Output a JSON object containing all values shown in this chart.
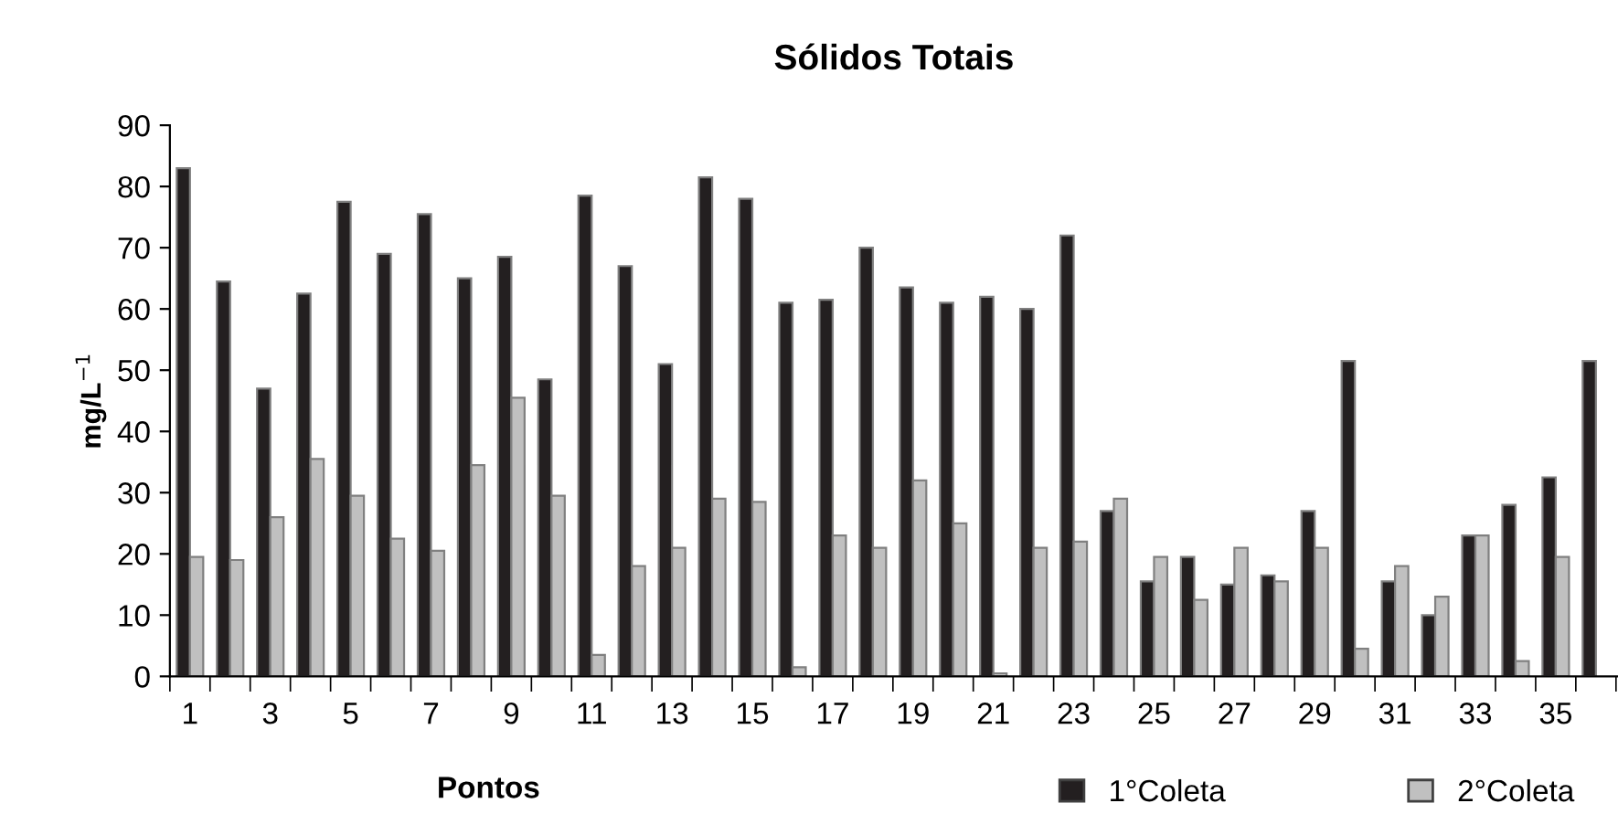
{
  "chart_data": {
    "type": "bar",
    "title": "Sólidos Totais",
    "xlabel": "Pontos",
    "ylabel": "mg/L$^{−1}$",
    "categories": [
      "1",
      null,
      "3",
      null,
      "5",
      null,
      "7",
      null,
      "9",
      null,
      "11",
      null,
      "13",
      null,
      "15",
      null,
      "17",
      null,
      "19",
      null,
      "21",
      null,
      "23",
      null,
      "25",
      null,
      "27",
      null,
      "29",
      null,
      "31",
      null,
      "33",
      null,
      "35",
      null
    ],
    "series": [
      {
        "name": "1°Coleta",
        "color": "#231f20",
        "values": [
          83,
          64.5,
          47,
          62.5,
          77.5,
          69,
          75.5,
          65,
          68.5,
          48.5,
          78.5,
          67,
          51,
          81.5,
          78,
          61,
          61.5,
          70,
          63.5,
          61,
          62,
          60,
          72,
          27,
          15.5,
          19.5,
          15,
          16.5,
          27,
          51.5,
          15.5,
          10,
          23,
          28,
          32.5,
          51.5
        ]
      },
      {
        "name": "2°Coleta",
        "color": "#c0c0c0",
        "values": [
          19.5,
          19,
          26,
          35.5,
          29.5,
          22.5,
          20.5,
          34.5,
          45.5,
          29.5,
          3.5,
          18,
          21,
          29,
          28.5,
          1.5,
          23,
          21,
          32,
          25,
          0.5,
          21,
          22,
          29,
          19.5,
          12.5,
          21,
          15.5,
          21,
          4.5,
          18,
          13,
          23,
          2.5,
          19.5,
          null
        ]
      }
    ],
    "ylim": [
      0,
      90
    ],
    "yticks": [
      0,
      10,
      20,
      30,
      40,
      50,
      60,
      70,
      80,
      90
    ],
    "grid": false,
    "legend": "bottom right"
  }
}
